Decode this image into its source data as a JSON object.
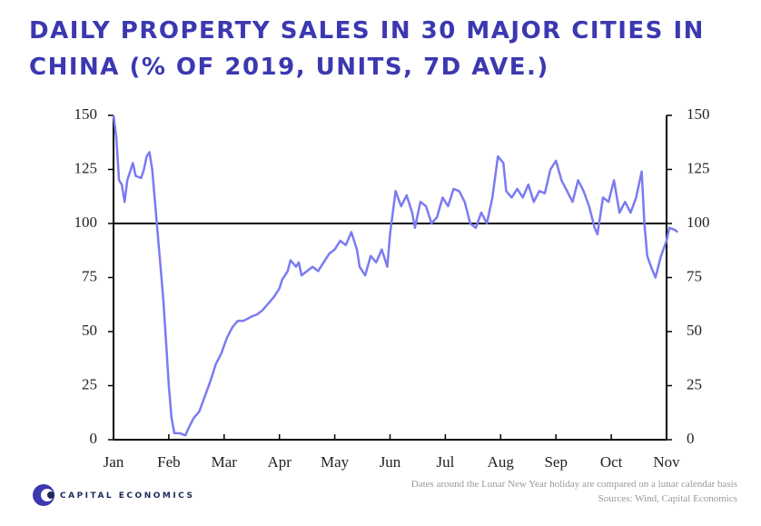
{
  "chart_data": {
    "type": "line",
    "title": [
      "DAILY PROPERTY SALES IN 30 MAJOR CITIES IN",
      "CHINA (% OF 2019, UNITS, 7D AVE.)"
    ],
    "xlim": [
      0,
      10
    ],
    "xticks": [
      {
        "value": 0,
        "label": "Jan"
      },
      {
        "value": 1,
        "label": "Feb"
      },
      {
        "value": 2,
        "label": "Mar"
      },
      {
        "value": 3,
        "label": "Apr"
      },
      {
        "value": 4,
        "label": "May"
      },
      {
        "value": 5,
        "label": "Jun"
      },
      {
        "value": 6,
        "label": "Jul"
      },
      {
        "value": 7,
        "label": "Aug"
      },
      {
        "value": 8,
        "label": "Sep"
      },
      {
        "value": 9,
        "label": "Oct"
      },
      {
        "value": 10,
        "label": "Nov"
      }
    ],
    "ylim": [
      0,
      150
    ],
    "yticks": [
      0,
      25,
      50,
      75,
      100,
      125,
      150
    ],
    "y2lim": [
      0,
      150
    ],
    "y2ticks": [
      0,
      25,
      50,
      75,
      100,
      125,
      150
    ],
    "hline": 100,
    "series": [
      {
        "color": "#7b7bf0",
        "x": [
          0.0,
          0.05,
          0.1,
          0.15,
          0.2,
          0.25,
          0.35,
          0.4,
          0.5,
          0.55,
          0.6,
          0.65,
          0.7,
          0.75,
          0.8,
          0.85,
          0.9,
          0.95,
          1.0,
          1.05,
          1.1,
          1.2,
          1.3,
          1.35,
          1.45,
          1.55,
          1.65,
          1.75,
          1.85,
          1.95,
          2.05,
          2.15,
          2.25,
          2.35,
          2.5,
          2.6,
          2.7,
          2.8,
          2.9,
          3.0,
          3.05,
          3.15,
          3.2,
          3.3,
          3.35,
          3.4,
          3.5,
          3.6,
          3.7,
          3.8,
          3.9,
          4.0,
          4.1,
          4.2,
          4.3,
          4.4,
          4.45,
          4.55,
          4.65,
          4.75,
          4.85,
          4.95,
          5.0,
          5.1,
          5.2,
          5.3,
          5.4,
          5.45,
          5.55,
          5.65,
          5.75,
          5.85,
          5.95,
          6.05,
          6.15,
          6.25,
          6.35,
          6.45,
          6.55,
          6.65,
          6.75,
          6.85,
          6.95,
          7.05,
          7.1,
          7.2,
          7.3,
          7.4,
          7.5,
          7.6,
          7.7,
          7.8,
          7.9,
          8.0,
          8.1,
          8.2,
          8.3,
          8.4,
          8.5,
          8.6,
          8.7,
          8.75,
          8.85,
          8.95,
          9.05,
          9.15,
          9.25,
          9.35,
          9.45,
          9.55,
          9.6,
          9.65,
          9.72,
          9.8,
          9.9,
          10.0,
          10.05,
          10.15,
          10.2
        ],
        "values": [
          150,
          140,
          120,
          118,
          110,
          120,
          128,
          122,
          121,
          125,
          131,
          133,
          125,
          110,
          95,
          80,
          65,
          45,
          25,
          10,
          3,
          3,
          2,
          5,
          10,
          13,
          20,
          27,
          35,
          40,
          47,
          52,
          55,
          55,
          57,
          58,
          60,
          63,
          66,
          70,
          74,
          78,
          83,
          80,
          82,
          76,
          78,
          80,
          78,
          82,
          86,
          88,
          92,
          90,
          96,
          88,
          80,
          76,
          85,
          82,
          88,
          80,
          95,
          115,
          108,
          113,
          105,
          98,
          110,
          108,
          100,
          103,
          112,
          108,
          116,
          115,
          110,
          100,
          98,
          105,
          100,
          112,
          131,
          128,
          115,
          112,
          116,
          112,
          118,
          110,
          115,
          114,
          125,
          129,
          120,
          115,
          110,
          120,
          115,
          108,
          98,
          95,
          112,
          110,
          120,
          105,
          110,
          105,
          112,
          124,
          100,
          85,
          80,
          75,
          85,
          92,
          98,
          97,
          96
        ]
      }
    ],
    "note": "Dates around the Lunar New Year holiday are compared on a lunar calendar basis",
    "source": "Sources: Wind, Capital Economics",
    "logo_text": "CAPITAL ECONOMICS"
  }
}
